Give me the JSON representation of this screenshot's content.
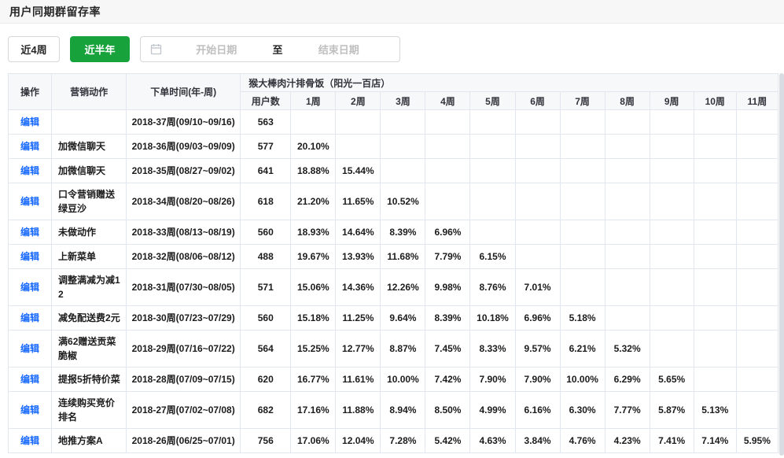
{
  "page": {
    "title": "用户同期群留存率"
  },
  "filters": {
    "last_4_weeks_label": "近4周",
    "last_half_year_label": "近半年",
    "date_picker": {
      "start_placeholder": "开始日期",
      "separator": "至",
      "end_placeholder": "结束日期",
      "icon": "calendar-icon"
    }
  },
  "colors": {
    "primary_green": "#17a23c",
    "link_blue": "#1769ff",
    "header_bg": "#f7f8fa",
    "border": "#e2e6ee"
  },
  "table": {
    "headers": {
      "operation": "操作",
      "marketing_action": "营销动作",
      "order_time": "下单时间(年-周)",
      "store_group": "猴大棒肉汁排骨饭（阳光一百店）",
      "user_count": "用户数",
      "weeks": [
        "1周",
        "2周",
        "3周",
        "4周",
        "5周",
        "6周",
        "7周",
        "8周",
        "9周",
        "10周",
        "11周"
      ]
    },
    "edit_label": "编辑",
    "rows": [
      {
        "marketing_action": "",
        "order_week": "2018-37周(09/10~09/16)",
        "user_count": "563",
        "retention": []
      },
      {
        "marketing_action": "加微信聊天",
        "order_week": "2018-36周(09/03~09/09)",
        "user_count": "577",
        "retention": [
          "20.10%"
        ]
      },
      {
        "marketing_action": "加微信聊天",
        "order_week": "2018-35周(08/27~09/02)",
        "user_count": "641",
        "retention": [
          "18.88%",
          "15.44%"
        ]
      },
      {
        "marketing_action": "口令营销赠送绿豆沙",
        "order_week": "2018-34周(08/20~08/26)",
        "user_count": "618",
        "retention": [
          "21.20%",
          "11.65%",
          "10.52%"
        ]
      },
      {
        "marketing_action": "未做动作",
        "order_week": "2018-33周(08/13~08/19)",
        "user_count": "560",
        "retention": [
          "18.93%",
          "14.64%",
          "8.39%",
          "6.96%"
        ]
      },
      {
        "marketing_action": "上新菜单",
        "order_week": "2018-32周(08/06~08/12)",
        "user_count": "488",
        "retention": [
          "19.67%",
          "13.93%",
          "11.68%",
          "7.79%",
          "6.15%"
        ]
      },
      {
        "marketing_action": "调整满减为减12",
        "order_week": "2018-31周(07/30~08/05)",
        "user_count": "571",
        "retention": [
          "15.06%",
          "14.36%",
          "12.26%",
          "9.98%",
          "8.76%",
          "7.01%"
        ]
      },
      {
        "marketing_action": "减免配送费2元",
        "order_week": "2018-30周(07/23~07/29)",
        "user_count": "560",
        "retention": [
          "15.18%",
          "11.25%",
          "9.64%",
          "8.39%",
          "10.18%",
          "6.96%",
          "5.18%"
        ]
      },
      {
        "marketing_action": "满62赠送贡菜脆椒",
        "order_week": "2018-29周(07/16~07/22)",
        "user_count": "564",
        "retention": [
          "15.25%",
          "12.77%",
          "8.87%",
          "7.45%",
          "8.33%",
          "9.57%",
          "6.21%",
          "5.32%"
        ]
      },
      {
        "marketing_action": "提报5折特价菜",
        "order_week": "2018-28周(07/09~07/15)",
        "user_count": "620",
        "retention": [
          "16.77%",
          "11.61%",
          "10.00%",
          "7.42%",
          "7.90%",
          "7.90%",
          "10.00%",
          "6.29%",
          "5.65%"
        ]
      },
      {
        "marketing_action": "连续购买竞价排名",
        "order_week": "2018-27周(07/02~07/08)",
        "user_count": "682",
        "retention": [
          "17.16%",
          "11.88%",
          "8.94%",
          "8.50%",
          "4.99%",
          "6.16%",
          "6.30%",
          "7.77%",
          "5.87%",
          "5.13%"
        ]
      },
      {
        "marketing_action": "地推方案A",
        "order_week": "2018-26周(06/25~07/01)",
        "user_count": "756",
        "retention": [
          "17.06%",
          "12.04%",
          "7.28%",
          "5.42%",
          "4.63%",
          "3.84%",
          "4.76%",
          "4.23%",
          "7.41%",
          "7.14%",
          "5.95%"
        ]
      }
    ]
  }
}
